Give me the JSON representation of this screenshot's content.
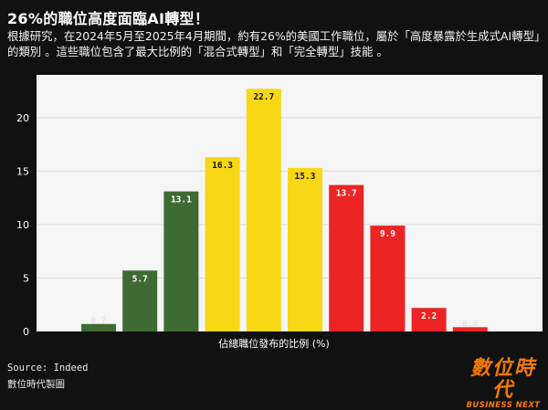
{
  "header": {
    "title": "26%的職位高度面臨AI轉型！",
    "subtitle": "根據研究，在2024年5月至2025年4月期間，約有26%的美國工作職位，屬於「高度暴露於生成式AI轉型」的類別 。這些職位包含了最大比例的「混合式轉型」和「完全轉型」技能 。"
  },
  "footer": {
    "source": "Source: Indeed",
    "credit": "數位時代製圖",
    "logo_main": "數位時代",
    "logo_sub": "BUSINESS NEXT"
  },
  "colors": {
    "green": "#3e6b33",
    "yellow": "#f7d716",
    "red": "#ec2424",
    "plot_bg": "#f5f5f5",
    "grid": "#dcdcdc",
    "logo": "#f57a00"
  },
  "chart_data": {
    "type": "bar",
    "title": "",
    "xlabel": "佔總職位發布的比例 (%)",
    "ylabel": "",
    "ylim": [
      0,
      24
    ],
    "yticks": [
      0,
      5,
      10,
      15,
      20
    ],
    "grid": true,
    "values": [
      0.7,
      5.7,
      13.1,
      16.3,
      22.7,
      15.3,
      13.7,
      9.9,
      2.2,
      0.4
    ],
    "labels": [
      "0.7",
      "5.7",
      "13.1",
      "16.3",
      "22.7",
      "15.3",
      "13.7",
      "9.9",
      "2.2",
      "0.4"
    ],
    "color_groups": [
      "green",
      "green",
      "green",
      "yellow",
      "yellow",
      "yellow",
      "red",
      "red",
      "red",
      "red"
    ]
  }
}
